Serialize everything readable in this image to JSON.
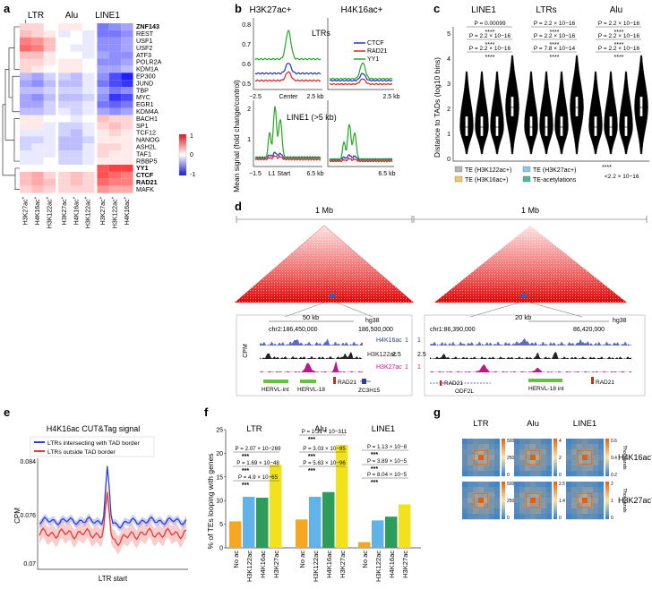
{
  "panel_labels": {
    "a": "a",
    "b": "b",
    "c": "c",
    "d": "d",
    "e": "e",
    "f": "f",
    "g": "g"
  },
  "panel_a": {
    "col_groups": [
      "LTR",
      "Alu",
      "LINE1"
    ],
    "col_labels": [
      "H3K27ac+",
      "H4K16ac+",
      "H3K122ac+",
      "H3K27ac+",
      "H4K16ac+",
      "H3K122ac+",
      "H3K27ac+",
      "H3K122ac+",
      "H4K16ac+"
    ],
    "row_labels": [
      "ZNF143",
      "REST",
      "USF1",
      "USF2",
      "ATF3",
      "POLR2A",
      "KDM1A",
      "EP300",
      "JUND",
      "TBP",
      "MYC",
      "EGR1",
      "KDM4A",
      "BACH1",
      "SP1",
      "TCF12",
      "NANOG",
      "ASH2L",
      "TAF1",
      "RBBP5",
      "YY1",
      "CTCF",
      "RAD21",
      "MAFK"
    ],
    "bold_rows": [
      "ZNF143",
      "YY1",
      "CTCF",
      "RAD21"
    ],
    "colorbar": {
      "max": "1",
      "mid": "0",
      "min": "-1"
    },
    "matrix": [
      [
        0.2,
        0.2,
        0.0,
        0.1,
        0.1,
        0.0,
        -0.6,
        -0.5,
        -0.4
      ],
      [
        0.3,
        0.2,
        0.1,
        -0.1,
        0.0,
        -0.1,
        -0.6,
        -0.6,
        -0.5
      ],
      [
        0.6,
        0.5,
        0.3,
        0.0,
        0.0,
        -0.1,
        -0.5,
        -0.5,
        -0.4
      ],
      [
        0.7,
        0.6,
        0.3,
        0.0,
        -0.1,
        -0.1,
        -0.5,
        -0.5,
        -0.4
      ],
      [
        0.3,
        0.3,
        0.1,
        0.0,
        0.0,
        -0.1,
        -0.4,
        -0.5,
        -0.5
      ],
      [
        0.2,
        0.2,
        0.1,
        0.1,
        0.1,
        0.0,
        -0.5,
        -0.5,
        -0.4
      ],
      [
        0.2,
        0.1,
        0.0,
        0.1,
        0.1,
        0.0,
        -0.4,
        -0.4,
        -0.3
      ],
      [
        -0.3,
        -0.4,
        -0.2,
        -0.2,
        -0.3,
        -0.1,
        -0.5,
        -0.8,
        -1.0
      ],
      [
        -0.4,
        -0.5,
        -0.3,
        -0.3,
        -0.3,
        -0.1,
        -0.6,
        -0.8,
        -0.9
      ],
      [
        -0.3,
        -0.3,
        -0.2,
        -0.2,
        -0.2,
        -0.1,
        -0.4,
        -0.6,
        -0.5
      ],
      [
        -0.4,
        -0.5,
        -0.3,
        -0.3,
        -0.3,
        -0.2,
        -0.5,
        -0.9,
        -0.8
      ],
      [
        -0.4,
        -0.4,
        -0.2,
        -0.2,
        -0.2,
        -0.1,
        -0.6,
        -0.7,
        -0.6
      ],
      [
        -0.3,
        -0.3,
        -0.2,
        -0.1,
        -0.2,
        -0.1,
        -0.4,
        -0.5,
        -0.4
      ],
      [
        0.1,
        0.1,
        0.0,
        0.0,
        -0.1,
        0.0,
        0.3,
        0.2,
        0.2
      ],
      [
        0.1,
        0.1,
        -0.1,
        -0.2,
        -0.2,
        -0.1,
        0.2,
        0.3,
        0.2
      ],
      [
        -0.1,
        -0.1,
        -0.1,
        -0.2,
        -0.3,
        -0.1,
        0.1,
        0.2,
        0.1
      ],
      [
        -0.2,
        -0.2,
        -0.1,
        -0.3,
        -0.3,
        -0.2,
        0.1,
        0.1,
        0.1
      ],
      [
        -0.2,
        -0.1,
        -0.1,
        -0.3,
        -0.3,
        -0.1,
        0.2,
        0.2,
        0.1
      ],
      [
        -0.1,
        -0.1,
        -0.1,
        -0.2,
        -0.2,
        -0.1,
        0.2,
        0.1,
        0.1
      ],
      [
        -0.1,
        -0.1,
        0.0,
        -0.2,
        -0.2,
        -0.1,
        0.1,
        0.1,
        0.1
      ],
      [
        0.0,
        0.0,
        0.0,
        0.0,
        0.0,
        0.0,
        0.8,
        0.9,
        0.9
      ],
      [
        0.3,
        0.4,
        0.2,
        0.2,
        0.3,
        0.2,
        0.8,
        0.7,
        0.6
      ],
      [
        0.3,
        0.4,
        0.3,
        0.2,
        0.3,
        0.2,
        0.7,
        0.6,
        0.6
      ],
      [
        0.2,
        0.3,
        0.2,
        0.2,
        0.2,
        0.2,
        0.5,
        0.4,
        0.4
      ]
    ]
  },
  "panel_b": {
    "titles": [
      "H3K27ac+",
      "H4K16ac+"
    ],
    "ltr_label": "LTRs",
    "line1_label": "LINE1 (>5 kb)",
    "ylabel": "Mean signal (fold change/control)",
    "legend": [
      {
        "name": "CTCF",
        "color": "#2233cc"
      },
      {
        "name": "RAD21",
        "color": "#dd2222"
      },
      {
        "name": "YY1",
        "color": "#22aa22"
      }
    ],
    "top_yticks": [
      "0.8",
      "0.7",
      "0.6",
      "0.5"
    ],
    "bottom_yticks": [
      "2",
      "1"
    ],
    "top_xticks": [
      "−2.5",
      "Center",
      "2.5 kb"
    ],
    "bottom_xticks": [
      "−1.5",
      "L1 Start",
      "6.5 kb"
    ]
  },
  "panel_c": {
    "groups": [
      "LINE1",
      "LTRs",
      "Alu"
    ],
    "ylabel": "Distance to TADs (log10 bins)",
    "yticks": [
      "5",
      "4",
      "3",
      "2",
      "1",
      "0"
    ],
    "pvals": {
      "LINE1": [
        "P = 0.00099",
        "****",
        "P = 2.2 × 10−16",
        "****",
        "P = 2.2 × 10−16",
        "****"
      ],
      "LTRs": [
        "P = 2.2 × 10−16",
        "****",
        "P = 2.2 × 10−16",
        "****",
        "P = 7.8 × 10−14",
        "****"
      ],
      "Alu": [
        "P = 2.2 × 10−16",
        "****",
        "P = 2.2 × 10−16",
        "****",
        "P = 2.2 × 10−16",
        "****"
      ]
    },
    "legend": [
      {
        "name": "TE (H3K122ac+)",
        "color": "#b5b5b5"
      },
      {
        "name": "TE (H3K27ac+)",
        "color": "#8ecae6"
      },
      {
        "name": "TE (H3K16ac+)",
        "color": "#f2c56b"
      },
      {
        "name": "TE-acetylations",
        "color": "#4fb79a"
      }
    ],
    "sig_note": "****",
    "sig_value": "<2.2 × 10−16"
  },
  "panel_d": {
    "left": {
      "scale": "1 Mb",
      "zoom": "50 kb",
      "genome": "hg38",
      "coord1": "chr2:186,450,000",
      "coord2": "186,500,000",
      "tracks": [
        "H4K16ac",
        "H3K122ac",
        "H3K27ac"
      ],
      "track_vals": [
        "1",
        "2.5",
        "1"
      ],
      "features": [
        "HERVL-int",
        "HERVL-18",
        "RAD21",
        "ZC3H15"
      ]
    },
    "right": {
      "scale": "1 Mb",
      "zoom": "20 kb",
      "genome": "hg38",
      "coord1": "chr1:86,390,000",
      "coord2": "86,420,000",
      "tracks": [
        "H4K16ac",
        "H3K122ac",
        "H3K27ac"
      ],
      "track_vals": [
        "1",
        "2.5",
        "1"
      ],
      "features": [
        "RAD21",
        "ODF2L",
        "HERVL-18 int",
        "RAD21"
      ]
    },
    "cpm": "CPM"
  },
  "panel_e": {
    "title": "H4K16ac CUT&Tag signal",
    "legend": [
      {
        "name": "LTRs intersecting with TAD border",
        "color": "#2b3fd6"
      },
      {
        "name": "LTRs outside TAD border",
        "color": "#e53935"
      }
    ],
    "ylabel": "CPM",
    "xlabel": "LTR start",
    "yticks": [
      "0.084",
      "0.076",
      "0.07"
    ]
  },
  "chart_data": {
    "type": "bar",
    "title": "",
    "ylabel": "% of TEs looping with genes",
    "ylim": [
      0,
      25
    ],
    "yticks": [
      "0",
      "5",
      "10",
      "15",
      "20",
      "25"
    ],
    "groups": [
      {
        "name": "LTR",
        "categories": [
          "No ac",
          "H3K122ac",
          "H4K16ac",
          "H3K27ac"
        ],
        "values": [
          5.6,
          10.8,
          10.6,
          17.6
        ],
        "pvals": [
          "P = 2.07 × 10−269",
          "***",
          "P = 1.69 × 10−48",
          "***",
          "P = 4.9 × 10−65",
          "***"
        ]
      },
      {
        "name": "Alu",
        "categories": [
          "No ac",
          "H3K122ac",
          "H4K16ac",
          "H3K27ac"
        ],
        "values": [
          6.0,
          10.8,
          11.8,
          21.8
        ],
        "pvals": [
          "P = 1.31 × 10−311",
          "***",
          "P = 3.03 × 10−95",
          "***",
          "P = 5.63 × 10−96",
          "***"
        ]
      },
      {
        "name": "LINE1",
        "categories": [
          "No ac",
          "H3K122ac",
          "H4K16ac",
          "H3K27ac"
        ],
        "values": [
          1.2,
          5.8,
          6.6,
          9.2
        ],
        "pvals": [
          "P = 1.13 × 10−8",
          "***",
          "P = 3.89 × 10−5",
          "***",
          "P = 8.04 × 10−5",
          "***"
        ]
      }
    ],
    "colors": [
      "#f5a623",
      "#5fb3e8",
      "#2e9d5c",
      "#f2e21b"
    ]
  },
  "panel_g": {
    "cols": [
      "LTR",
      "Alu",
      "LINE1"
    ],
    "rows": [
      "H4K16ac+",
      "H3K27ac+"
    ],
    "unit": "Thousands",
    "scales": [
      [
        "500",
        "250",
        "0"
      ],
      [
        "4",
        "2",
        "0"
      ],
      [
        "0.6",
        "0.4",
        "0.2"
      ],
      [
        "500",
        "250",
        "0"
      ],
      [
        "2.5",
        "1.4",
        "0"
      ],
      [
        "2",
        "1",
        "0"
      ]
    ]
  }
}
